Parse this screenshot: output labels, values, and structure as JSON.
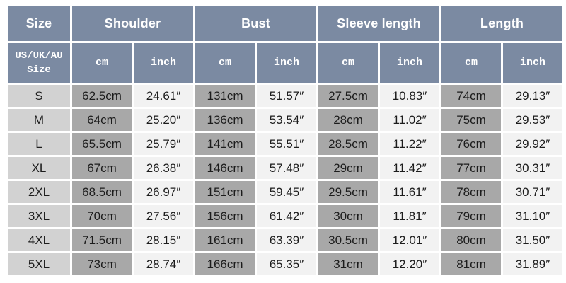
{
  "table": {
    "title": "size-chart",
    "colors": {
      "header_bg": "#7b8aa2",
      "header_text": "#ffffff",
      "size_col_bg": "#d2d2d2",
      "cm_col_bg": "#a8a8a8",
      "inch_col_bg": "#f2f2f2",
      "data_text": "#1c1c1c",
      "gap": "#ffffff"
    },
    "header_groups": [
      {
        "label": "Size"
      },
      {
        "label": "Shoulder"
      },
      {
        "label": "Bust"
      },
      {
        "label": "Sleeve length"
      },
      {
        "label": "Length"
      }
    ],
    "subheader": {
      "size_label": "US/UK/AU Size",
      "units": [
        "cm",
        "inch",
        "cm",
        "inch",
        "cm",
        "inch",
        "cm",
        "inch"
      ]
    },
    "rows": [
      {
        "size": "S",
        "values": [
          "62.5cm",
          "24.61″",
          "131cm",
          "51.57″",
          "27.5cm",
          "10.83″",
          "74cm",
          "29.13″"
        ]
      },
      {
        "size": "M",
        "values": [
          "64cm",
          "25.20″",
          "136cm",
          "53.54″",
          "28cm",
          "11.02″",
          "75cm",
          "29.53″"
        ]
      },
      {
        "size": "L",
        "values": [
          "65.5cm",
          "25.79″",
          "141cm",
          "55.51″",
          "28.5cm",
          "11.22″",
          "76cm",
          "29.92″"
        ]
      },
      {
        "size": "XL",
        "values": [
          "67cm",
          "26.38″",
          "146cm",
          "57.48″",
          "29cm",
          "11.42″",
          "77cm",
          "30.31″"
        ]
      },
      {
        "size": "2XL",
        "values": [
          "68.5cm",
          "26.97″",
          "151cm",
          "59.45″",
          "29.5cm",
          "11.61″",
          "78cm",
          "30.71″"
        ]
      },
      {
        "size": "3XL",
        "values": [
          "70cm",
          "27.56″",
          "156cm",
          "61.42″",
          "30cm",
          "11.81″",
          "79cm",
          "31.10″"
        ]
      },
      {
        "size": "4XL",
        "values": [
          "71.5cm",
          "28.15″",
          "161cm",
          "63.39″",
          "30.5cm",
          "12.01″",
          "80cm",
          "31.50″"
        ]
      },
      {
        "size": "5XL",
        "values": [
          "73cm",
          "28.74″",
          "166cm",
          "65.35″",
          "31cm",
          "12.20″",
          "81cm",
          "31.89″"
        ]
      }
    ]
  }
}
